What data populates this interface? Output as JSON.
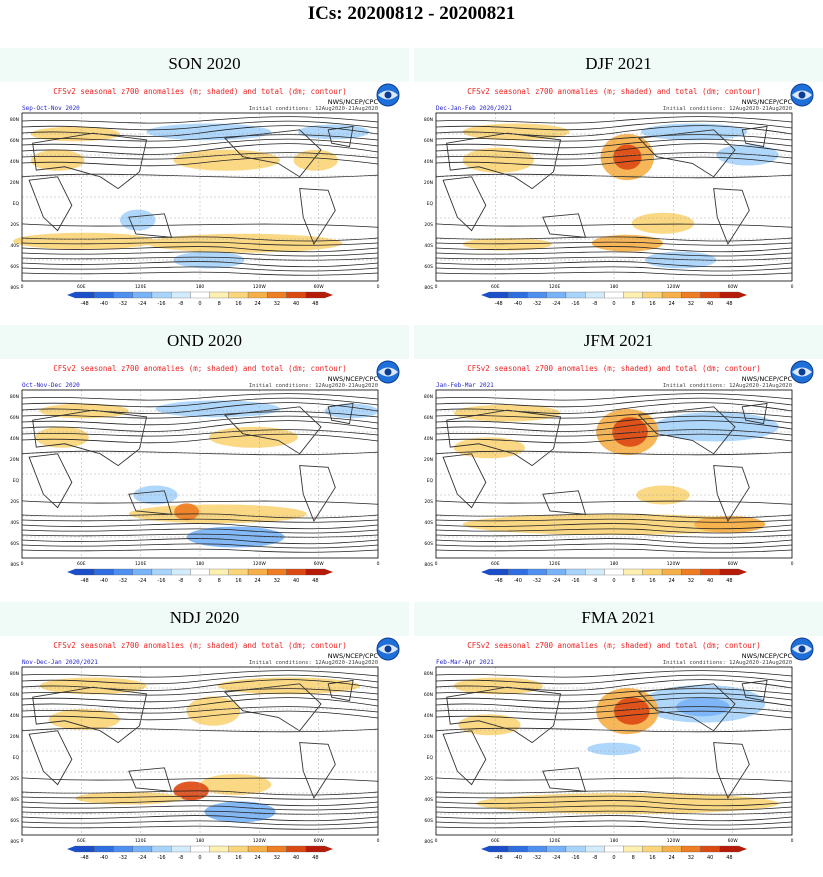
{
  "page": {
    "title": "ICs: 20200812 - 20200821"
  },
  "panels": [
    {
      "season": "SON 2020",
      "header": "CFSv2 seasonal z700 anomalies (m; shaded) and total (dm; contour)",
      "period": "Sep-Oct-Nov 2020",
      "ic": "Initial conditions: 12Aug2020-21Aug2020",
      "agency": "NWS/NCEP/CPC",
      "logo": "noaa-logo",
      "map": "son"
    },
    {
      "season": "DJF 2021",
      "header": "CFSv2 seasonal z700 anomalies (m; shaded) and total (dm; contour)",
      "period": "Dec-Jan-Feb 2020/2021",
      "ic": "Initial conditions: 12Aug2020-21Aug2020",
      "agency": "NWS/NCEP/CPC",
      "logo": "noaa-logo",
      "map": "djf"
    },
    {
      "season": "OND 2020",
      "header": "CFSv2 seasonal z700 anomalies (m; shaded) and total (dm; contour)",
      "period": "Oct-Nov-Dec 2020",
      "ic": "Initial conditions: 12Aug2020-21Aug2020",
      "agency": "NWS/NCEP/CPC",
      "logo": "noaa-logo",
      "map": "ond"
    },
    {
      "season": "JFM 2021",
      "header": "CFSv2 seasonal z700 anomalies (m; shaded) and total (dm; contour)",
      "period": "Jan-Feb-Mar 2021",
      "ic": "Initial conditions: 12Aug2020-21Aug2020",
      "agency": "NWS/NCEP/CPC",
      "logo": "noaa-logo",
      "map": "jfm"
    },
    {
      "season": "NDJ 2020",
      "header": "CFSv2 seasonal z700 anomalies (m; shaded) and total (dm; contour)",
      "period": "Nov-Dec-Jan 2020/2021",
      "ic": "Initial conditions: 12Aug2020-21Aug2020",
      "agency": "NWS/NCEP/CPC",
      "logo": "noaa-logo",
      "map": "ndj"
    },
    {
      "season": "FMA 2021",
      "header": "CFSv2 seasonal z700 anomalies (m; shaded) and total (dm; contour)",
      "period": "Feb-Mar-Apr 2021",
      "ic": "Initial conditions: 12Aug2020-21Aug2020",
      "agency": "NWS/NCEP/CPC",
      "logo": "noaa-logo",
      "map": "fma"
    }
  ],
  "map_labels": {
    "lat": [
      "80N",
      "60N",
      "40N",
      "20N",
      "EQ",
      "20S",
      "40S",
      "60S",
      "80S"
    ],
    "lon": [
      "0",
      "60E",
      "120E",
      "180",
      "120W",
      "60W",
      "0"
    ]
  },
  "colorbar": {
    "ticks": [
      "-48",
      "-40",
      "-32",
      "-24",
      "-16",
      "-8",
      "0",
      "8",
      "16",
      "24",
      "32",
      "40",
      "48"
    ],
    "colors": [
      "#1a4fc9",
      "#2f6ee0",
      "#4f8ff0",
      "#79b3f7",
      "#a8d4fb",
      "#d2ecfd",
      "#ffffff",
      "#fdf0b0",
      "#fbd57a",
      "#f6b04a",
      "#ee7d24",
      "#dc4a14",
      "#b81a08"
    ]
  },
  "colors": {
    "panel_background": "#f0faf6",
    "header_text": "#ee2222",
    "period_text": "#2222cc",
    "logo": "#1f6fd8"
  }
}
